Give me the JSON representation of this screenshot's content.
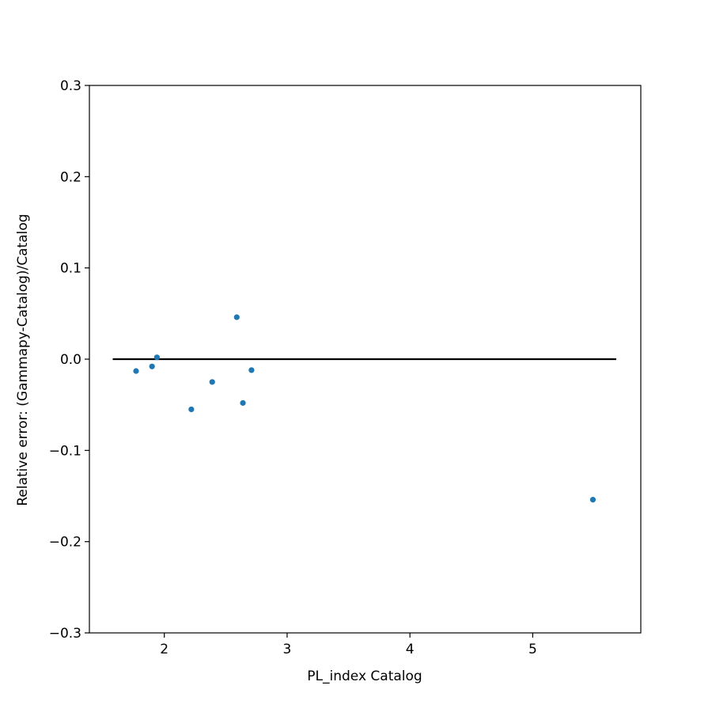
{
  "chart_data": {
    "type": "scatter",
    "xlabel": "PL_index Catalog",
    "ylabel": "Relative error: (Gammapy-Catalog)/Catalog",
    "xlim": [
      1.39,
      5.88
    ],
    "ylim": [
      -0.3,
      0.3
    ],
    "x_ticks": [
      2,
      3,
      4,
      5
    ],
    "y_ticks": [
      -0.3,
      -0.2,
      -0.1,
      0.0,
      0.1,
      0.2,
      0.3
    ],
    "y_tick_labels": [
      "−0.3",
      "−0.2",
      "−0.1",
      "0.0",
      "0.1",
      "0.2",
      "0.3"
    ],
    "x_tick_labels": [
      "2",
      "3",
      "4",
      "5"
    ],
    "grid": false,
    "reference_line": {
      "x": [
        1.58,
        5.68
      ],
      "y": 0.0,
      "color": "#000000"
    },
    "points": [
      {
        "x": 1.77,
        "y": -0.013
      },
      {
        "x": 1.9,
        "y": -0.008
      },
      {
        "x": 1.94,
        "y": 0.002
      },
      {
        "x": 2.22,
        "y": -0.055
      },
      {
        "x": 2.39,
        "y": -0.025
      },
      {
        "x": 2.59,
        "y": 0.046
      },
      {
        "x": 2.64,
        "y": -0.048
      },
      {
        "x": 2.71,
        "y": -0.012
      },
      {
        "x": 5.49,
        "y": -0.154
      }
    ],
    "marker_color": "#1f77b4"
  }
}
